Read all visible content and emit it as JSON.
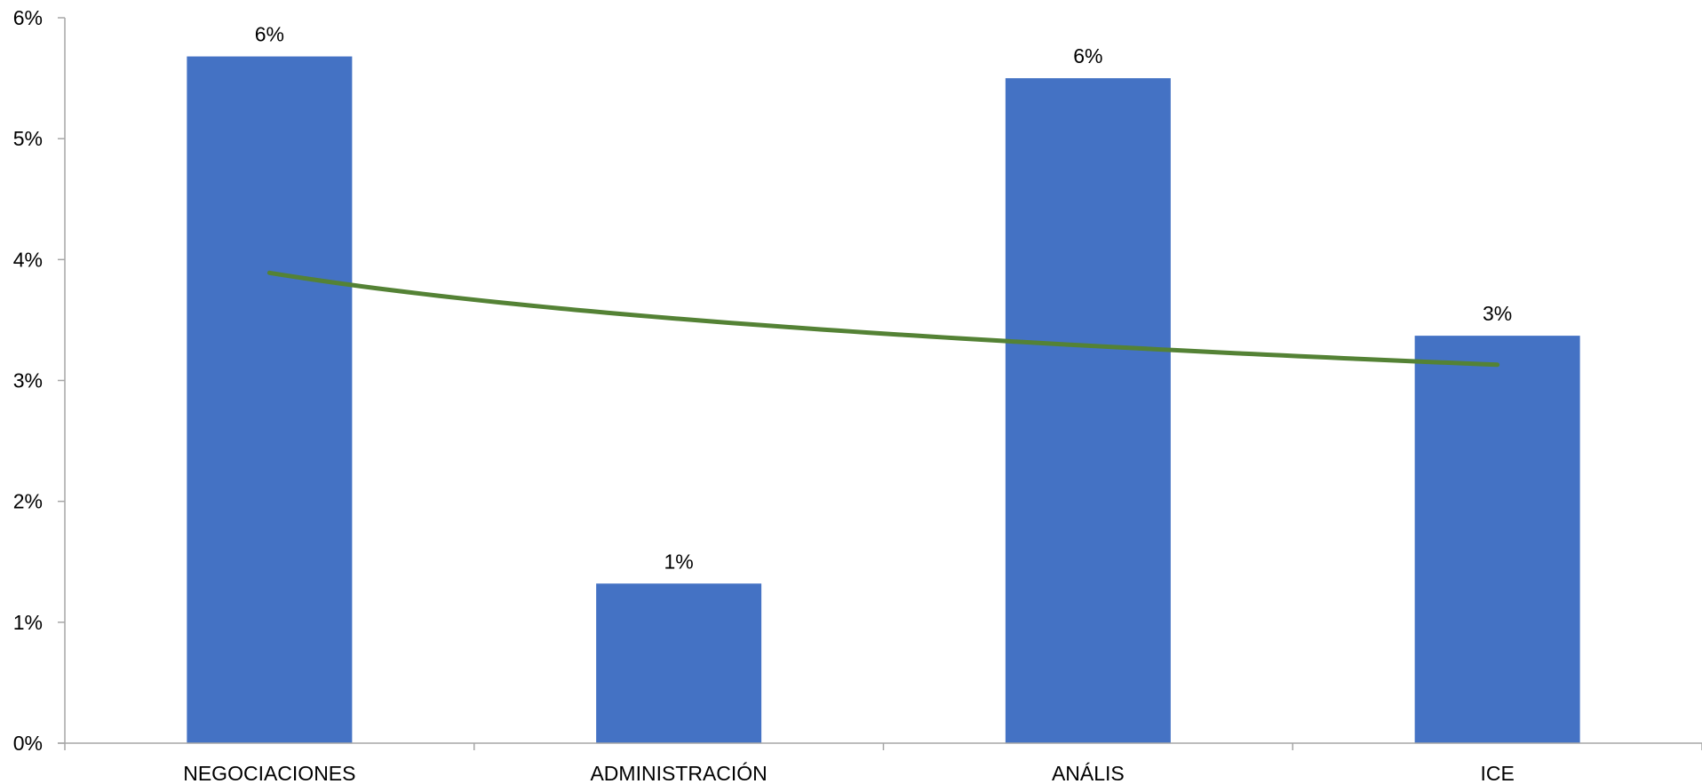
{
  "chart_data": {
    "type": "bar",
    "categories": [
      "NEGOCIACIONES",
      "ADMINISTRACIÓN",
      "ANÁLIS",
      "ICE"
    ],
    "values": [
      0.0568,
      0.0132,
      0.055,
      0.0337
    ],
    "data_labels": [
      "6%",
      "1%",
      "6%",
      "3%"
    ],
    "ylim": [
      0,
      0.06
    ],
    "yticks": [
      0,
      0.01,
      0.02,
      0.03,
      0.04,
      0.05,
      0.06
    ],
    "ytick_labels": [
      "0%",
      "1%",
      "2%",
      "3%",
      "4%",
      "5%",
      "6%"
    ],
    "trendline": {
      "type": "logarithmic",
      "values": [
        0.0389,
        0.0351,
        0.0329,
        0.0313
      ]
    },
    "title": "",
    "xlabel": "",
    "ylabel": "",
    "grid": false,
    "legend": "none",
    "colors": {
      "bar": "#4472C4",
      "trendline": "#548235",
      "axis": "#A6A6A6",
      "text": "#000000"
    }
  }
}
